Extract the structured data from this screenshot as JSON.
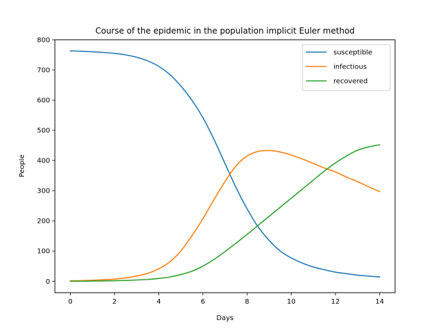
{
  "chart_data": {
    "type": "line",
    "title": "Course of the epidemic in the population implicit Euler method",
    "xlabel": "Days",
    "ylabel": "People",
    "xlim": [
      -0.7,
      14.7
    ],
    "ylim": [
      -38,
      800
    ],
    "xticks": [
      0,
      2,
      4,
      6,
      8,
      10,
      12,
      14
    ],
    "yticks": [
      0,
      100,
      200,
      300,
      400,
      500,
      600,
      700,
      800
    ],
    "grid": false,
    "legend_position": "top-right",
    "x": [
      0,
      0.5,
      1,
      1.5,
      2,
      2.5,
      3,
      3.5,
      4,
      4.5,
      5,
      5.5,
      6,
      6.5,
      7,
      7.5,
      8,
      8.5,
      9,
      9.5,
      10,
      10.5,
      11,
      11.5,
      12,
      12.5,
      13,
      13.5,
      14
    ],
    "series": [
      {
        "name": "susceptible",
        "color": "#1f77b4",
        "values": [
          763,
          762,
          760,
          758,
          755,
          750,
          742,
          730,
          712,
          685,
          647,
          600,
          542,
          470,
          390,
          310,
          240,
          180,
          135,
          100,
          77,
          60,
          47,
          38,
          30,
          25,
          20,
          17,
          14
        ]
      },
      {
        "name": "infectious",
        "color": "#ff7f0e",
        "values": [
          1,
          2,
          3,
          5,
          7,
          11,
          17,
          26,
          41,
          64,
          100,
          150,
          207,
          270,
          330,
          382,
          415,
          430,
          433,
          428,
          418,
          405,
          390,
          375,
          362,
          345,
          330,
          313,
          297
        ]
      },
      {
        "name": "recovered",
        "color": "#2ca02c",
        "values": [
          0,
          0,
          0.5,
          1,
          1.5,
          2.5,
          4,
          6,
          9,
          14,
          22,
          33,
          50,
          72,
          98,
          126,
          155,
          185,
          215,
          245,
          275,
          305,
          335,
          365,
          392,
          415,
          434,
          445,
          452
        ]
      }
    ]
  }
}
